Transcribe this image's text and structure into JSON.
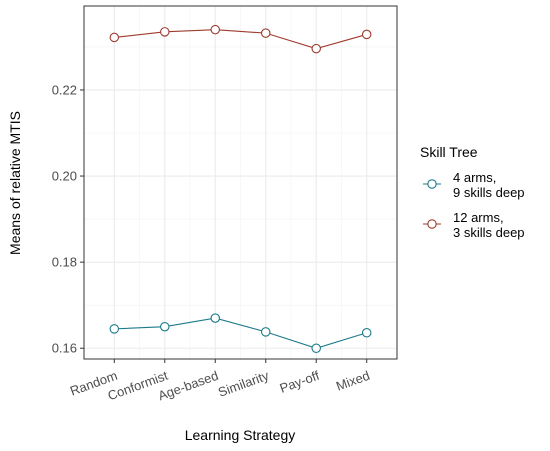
{
  "chart_data": {
    "type": "line",
    "title": "",
    "xlabel": "Learning Strategy",
    "ylabel": "Means of relative MTIS",
    "categories": [
      "Random",
      "Conformist",
      "Age-based",
      "Similarity",
      "Pay-off",
      "Mixed"
    ],
    "ylim": [
      0.1575,
      0.2395
    ],
    "yticks": [
      0.16,
      0.18,
      0.2,
      0.22
    ],
    "ytick_labels": [
      "0.16",
      "0.18",
      "0.20",
      "0.22"
    ],
    "grid": true,
    "legend": {
      "title": "Skill Tree",
      "position": "right"
    },
    "series": [
      {
        "name": "4 arms,\n9 skills deep",
        "label_lines": [
          "4 arms,",
          "9 skills deep"
        ],
        "color": "#1b7a8a",
        "values": [
          0.1645,
          0.165,
          0.167,
          0.1638,
          0.16,
          0.1636
        ]
      },
      {
        "name": "12 arms,\n3 skills deep",
        "label_lines": [
          "12 arms,",
          "3 skills deep"
        ],
        "color": "#9e3a2e",
        "values": [
          0.2322,
          0.2335,
          0.234,
          0.2332,
          0.2296,
          0.2329
        ]
      }
    ]
  }
}
